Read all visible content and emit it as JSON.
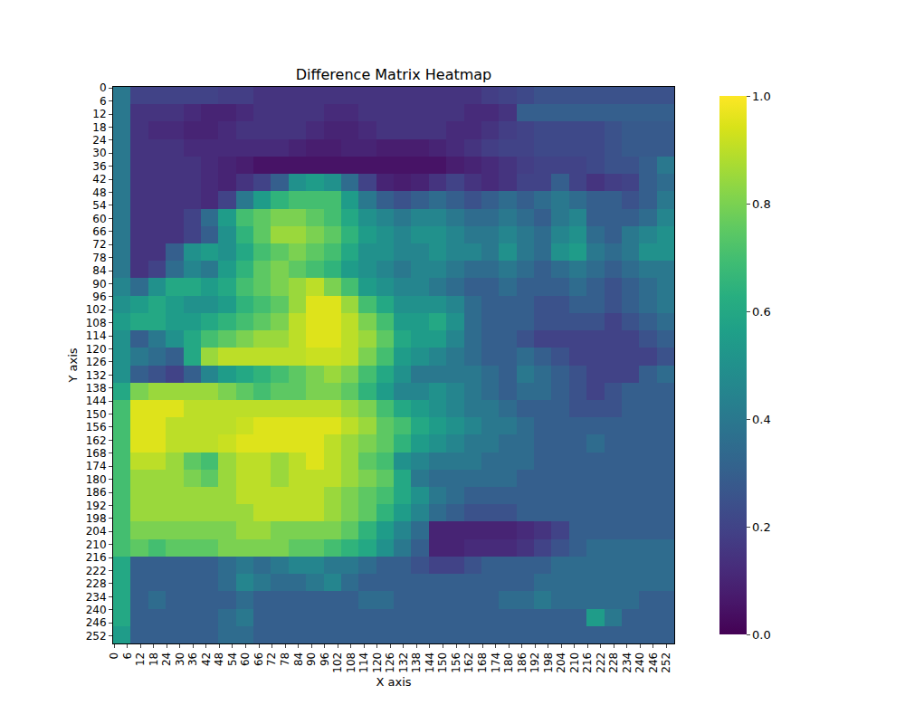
{
  "chart_data": {
    "type": "heatmap",
    "title": "Difference Matrix Heatmap",
    "x_label": "X axis",
    "y_label": "Y axis",
    "color": "Viridis",
    "x": [
      3.5,
      11.5,
      19.5,
      27.5,
      35.5,
      43.5,
      51.5,
      59.5,
      67.5,
      75.5,
      83.5,
      91.5,
      99.5,
      107.5,
      115.5,
      123.5,
      131.5,
      139.5,
      147.5,
      155.5,
      163.5,
      171.5,
      179.5,
      187.5,
      195.5,
      203.5,
      211.5,
      219.5,
      227.5,
      235.5,
      243.5,
      251.5
    ],
    "y": [
      3.5,
      11.5,
      19.5,
      27.5,
      35.5,
      43.5,
      51.5,
      59.5,
      67.5,
      75.5,
      83.5,
      91.5,
      99.5,
      107.5,
      115.5,
      123.5,
      131.5,
      139.5,
      147.5,
      155.5,
      163.5,
      171.5,
      179.5,
      187.5,
      195.5,
      203.5,
      211.5,
      219.5,
      227.5,
      235.5,
      243.5,
      251.5
    ],
    "xlim": [
      -0.5,
      255.5
    ],
    "ylim": [
      255.5,
      -0.5
    ],
    "xticks": [
      0,
      6,
      12,
      18,
      24,
      30,
      36,
      42,
      48,
      54,
      60,
      66,
      72,
      78,
      84,
      90,
      96,
      102,
      108,
      114,
      120,
      126,
      132,
      138,
      144,
      150,
      156,
      162,
      168,
      174,
      180,
      186,
      192,
      198,
      204,
      210,
      216,
      222,
      228,
      234,
      240,
      246,
      252
    ],
    "yticks": [
      0,
      6,
      12,
      18,
      24,
      30,
      36,
      42,
      48,
      54,
      60,
      66,
      72,
      78,
      84,
      90,
      96,
      102,
      108,
      114,
      120,
      126,
      132,
      138,
      144,
      150,
      156,
      162,
      168,
      174,
      180,
      186,
      192,
      198,
      204,
      210,
      216,
      222,
      228,
      234,
      240,
      246,
      252
    ],
    "colorbar": {
      "range": [
        0,
        1
      ],
      "ticks": [
        {
          "value": 0,
          "label": "0.0"
        },
        {
          "value": 0.2,
          "label": "0.2"
        },
        {
          "value": 0.4,
          "label": "0.4"
        },
        {
          "value": 0.6,
          "label": "0.6"
        },
        {
          "value": 0.8,
          "label": "0.8"
        },
        {
          "value": 1,
          "label": "1.0"
        }
      ]
    },
    "z": [
      [
        0.4,
        0.2,
        0.2,
        0.2,
        0.2,
        0.2,
        0.18,
        0.18,
        0.15,
        0.15,
        0.15,
        0.15,
        0.15,
        0.15,
        0.15,
        0.15,
        0.15,
        0.15,
        0.15,
        0.15,
        0.15,
        0.18,
        0.2,
        0.22,
        0.25,
        0.25,
        0.25,
        0.25,
        0.25,
        0.25,
        0.25,
        0.25
      ],
      [
        0.4,
        0.15,
        0.15,
        0.15,
        0.12,
        0.1,
        0.1,
        0.12,
        0.15,
        0.15,
        0.15,
        0.15,
        0.12,
        0.12,
        0.15,
        0.15,
        0.15,
        0.15,
        0.15,
        0.15,
        0.12,
        0.12,
        0.15,
        0.3,
        0.3,
        0.3,
        0.3,
        0.3,
        0.3,
        0.3,
        0.3,
        0.3
      ],
      [
        0.4,
        0.15,
        0.12,
        0.12,
        0.1,
        0.1,
        0.12,
        0.15,
        0.15,
        0.15,
        0.15,
        0.12,
        0.1,
        0.1,
        0.12,
        0.15,
        0.15,
        0.15,
        0.15,
        0.12,
        0.12,
        0.15,
        0.18,
        0.2,
        0.22,
        0.22,
        0.22,
        0.22,
        0.25,
        0.28,
        0.28,
        0.28
      ],
      [
        0.4,
        0.15,
        0.15,
        0.15,
        0.12,
        0.12,
        0.12,
        0.12,
        0.12,
        0.12,
        0.1,
        0.08,
        0.08,
        0.1,
        0.1,
        0.08,
        0.08,
        0.08,
        0.1,
        0.12,
        0.15,
        0.18,
        0.2,
        0.2,
        0.22,
        0.22,
        0.22,
        0.22,
        0.25,
        0.28,
        0.28,
        0.28
      ],
      [
        0.4,
        0.15,
        0.15,
        0.15,
        0.15,
        0.12,
        0.1,
        0.08,
        0.05,
        0.05,
        0.05,
        0.05,
        0.05,
        0.05,
        0.05,
        0.05,
        0.05,
        0.05,
        0.05,
        0.08,
        0.1,
        0.12,
        0.15,
        0.18,
        0.2,
        0.2,
        0.2,
        0.22,
        0.25,
        0.25,
        0.3,
        0.4
      ],
      [
        0.4,
        0.15,
        0.15,
        0.15,
        0.15,
        0.12,
        0.1,
        0.15,
        0.2,
        0.3,
        0.5,
        0.55,
        0.5,
        0.35,
        0.2,
        0.1,
        0.08,
        0.1,
        0.15,
        0.2,
        0.15,
        0.12,
        0.15,
        0.2,
        0.2,
        0.3,
        0.2,
        0.15,
        0.18,
        0.2,
        0.3,
        0.35
      ],
      [
        0.4,
        0.15,
        0.15,
        0.15,
        0.15,
        0.12,
        0.2,
        0.4,
        0.55,
        0.65,
        0.7,
        0.7,
        0.7,
        0.55,
        0.4,
        0.3,
        0.25,
        0.3,
        0.35,
        0.3,
        0.25,
        0.3,
        0.35,
        0.3,
        0.35,
        0.4,
        0.35,
        0.3,
        0.3,
        0.25,
        0.3,
        0.4
      ],
      [
        0.4,
        0.15,
        0.15,
        0.15,
        0.2,
        0.35,
        0.55,
        0.7,
        0.75,
        0.8,
        0.8,
        0.75,
        0.7,
        0.6,
        0.5,
        0.45,
        0.4,
        0.45,
        0.45,
        0.4,
        0.35,
        0.35,
        0.4,
        0.35,
        0.3,
        0.4,
        0.45,
        0.3,
        0.3,
        0.3,
        0.35,
        0.45
      ],
      [
        0.4,
        0.15,
        0.15,
        0.15,
        0.2,
        0.3,
        0.5,
        0.65,
        0.75,
        0.85,
        0.85,
        0.8,
        0.75,
        0.65,
        0.55,
        0.5,
        0.45,
        0.5,
        0.5,
        0.45,
        0.4,
        0.4,
        0.45,
        0.4,
        0.35,
        0.45,
        0.5,
        0.35,
        0.3,
        0.4,
        0.45,
        0.5
      ],
      [
        0.4,
        0.15,
        0.15,
        0.3,
        0.5,
        0.55,
        0.5,
        0.6,
        0.7,
        0.75,
        0.8,
        0.75,
        0.7,
        0.6,
        0.5,
        0.5,
        0.45,
        0.45,
        0.5,
        0.45,
        0.45,
        0.4,
        0.5,
        0.4,
        0.35,
        0.5,
        0.55,
        0.4,
        0.35,
        0.4,
        0.5,
        0.5
      ],
      [
        0.4,
        0.15,
        0.2,
        0.35,
        0.45,
        0.4,
        0.55,
        0.65,
        0.75,
        0.8,
        0.75,
        0.7,
        0.65,
        0.55,
        0.5,
        0.45,
        0.4,
        0.45,
        0.45,
        0.4,
        0.35,
        0.35,
        0.4,
        0.35,
        0.3,
        0.35,
        0.4,
        0.35,
        0.3,
        0.35,
        0.4,
        0.4
      ],
      [
        0.45,
        0.35,
        0.5,
        0.6,
        0.6,
        0.55,
        0.6,
        0.7,
        0.75,
        0.8,
        0.85,
        0.9,
        0.8,
        0.7,
        0.55,
        0.5,
        0.45,
        0.45,
        0.4,
        0.35,
        0.3,
        0.3,
        0.35,
        0.3,
        0.3,
        0.3,
        0.35,
        0.3,
        0.25,
        0.3,
        0.35,
        0.4
      ],
      [
        0.5,
        0.55,
        0.6,
        0.55,
        0.5,
        0.5,
        0.55,
        0.65,
        0.7,
        0.75,
        0.85,
        0.95,
        0.95,
        0.85,
        0.7,
        0.6,
        0.5,
        0.5,
        0.5,
        0.45,
        0.35,
        0.3,
        0.3,
        0.3,
        0.25,
        0.25,
        0.3,
        0.3,
        0.25,
        0.3,
        0.35,
        0.4
      ],
      [
        0.55,
        0.6,
        0.6,
        0.55,
        0.55,
        0.6,
        0.65,
        0.7,
        0.75,
        0.8,
        0.9,
        0.95,
        0.95,
        0.9,
        0.8,
        0.7,
        0.55,
        0.55,
        0.6,
        0.5,
        0.35,
        0.3,
        0.3,
        0.3,
        0.25,
        0.25,
        0.25,
        0.25,
        0.2,
        0.25,
        0.3,
        0.35
      ],
      [
        0.5,
        0.3,
        0.4,
        0.5,
        0.6,
        0.7,
        0.75,
        0.8,
        0.85,
        0.85,
        0.9,
        0.95,
        0.95,
        0.9,
        0.85,
        0.75,
        0.6,
        0.55,
        0.55,
        0.45,
        0.35,
        0.3,
        0.3,
        0.25,
        0.2,
        0.2,
        0.2,
        0.2,
        0.2,
        0.2,
        0.25,
        0.3
      ],
      [
        0.5,
        0.4,
        0.35,
        0.3,
        0.6,
        0.85,
        0.9,
        0.9,
        0.9,
        0.9,
        0.9,
        0.92,
        0.92,
        0.9,
        0.8,
        0.7,
        0.55,
        0.5,
        0.45,
        0.4,
        0.35,
        0.3,
        0.3,
        0.35,
        0.3,
        0.25,
        0.2,
        0.2,
        0.2,
        0.2,
        0.2,
        0.25
      ],
      [
        0.5,
        0.3,
        0.25,
        0.2,
        0.3,
        0.45,
        0.55,
        0.6,
        0.65,
        0.7,
        0.75,
        0.8,
        0.85,
        0.8,
        0.7,
        0.6,
        0.5,
        0.4,
        0.4,
        0.4,
        0.4,
        0.35,
        0.3,
        0.4,
        0.35,
        0.3,
        0.25,
        0.2,
        0.2,
        0.2,
        0.3,
        0.35
      ],
      [
        0.6,
        0.8,
        0.85,
        0.85,
        0.85,
        0.85,
        0.8,
        0.75,
        0.7,
        0.75,
        0.75,
        0.8,
        0.8,
        0.75,
        0.65,
        0.55,
        0.45,
        0.45,
        0.5,
        0.45,
        0.4,
        0.35,
        0.3,
        0.35,
        0.35,
        0.3,
        0.25,
        0.2,
        0.25,
        0.3,
        0.3,
        0.3
      ],
      [
        0.7,
        0.95,
        0.95,
        0.95,
        0.9,
        0.9,
        0.9,
        0.9,
        0.9,
        0.9,
        0.9,
        0.9,
        0.9,
        0.85,
        0.8,
        0.7,
        0.6,
        0.55,
        0.5,
        0.45,
        0.4,
        0.4,
        0.35,
        0.3,
        0.3,
        0.3,
        0.25,
        0.25,
        0.25,
        0.3,
        0.3,
        0.3
      ],
      [
        0.7,
        0.95,
        0.95,
        0.9,
        0.9,
        0.9,
        0.9,
        0.92,
        0.95,
        0.95,
        0.95,
        0.95,
        0.95,
        0.9,
        0.85,
        0.75,
        0.7,
        0.6,
        0.55,
        0.5,
        0.45,
        0.4,
        0.4,
        0.35,
        0.3,
        0.3,
        0.3,
        0.3,
        0.3,
        0.3,
        0.3,
        0.3
      ],
      [
        0.7,
        0.95,
        0.95,
        0.9,
        0.9,
        0.9,
        0.92,
        0.95,
        0.95,
        0.95,
        0.95,
        0.95,
        0.9,
        0.85,
        0.8,
        0.75,
        0.65,
        0.55,
        0.5,
        0.45,
        0.4,
        0.4,
        0.35,
        0.35,
        0.3,
        0.3,
        0.3,
        0.35,
        0.3,
        0.3,
        0.3,
        0.3
      ],
      [
        0.7,
        0.9,
        0.9,
        0.85,
        0.75,
        0.7,
        0.85,
        0.9,
        0.9,
        0.85,
        0.9,
        0.95,
        0.9,
        0.85,
        0.75,
        0.7,
        0.5,
        0.45,
        0.4,
        0.4,
        0.4,
        0.35,
        0.35,
        0.35,
        0.3,
        0.3,
        0.3,
        0.3,
        0.3,
        0.3,
        0.3,
        0.3
      ],
      [
        0.7,
        0.85,
        0.85,
        0.85,
        0.8,
        0.75,
        0.85,
        0.9,
        0.9,
        0.85,
        0.9,
        0.9,
        0.9,
        0.85,
        0.8,
        0.75,
        0.6,
        0.4,
        0.35,
        0.35,
        0.35,
        0.35,
        0.35,
        0.3,
        0.3,
        0.3,
        0.3,
        0.3,
        0.3,
        0.3,
        0.3,
        0.3
      ],
      [
        0.7,
        0.85,
        0.85,
        0.85,
        0.85,
        0.85,
        0.85,
        0.9,
        0.9,
        0.9,
        0.9,
        0.9,
        0.85,
        0.8,
        0.75,
        0.7,
        0.6,
        0.5,
        0.4,
        0.35,
        0.3,
        0.3,
        0.3,
        0.3,
        0.3,
        0.3,
        0.3,
        0.3,
        0.3,
        0.3,
        0.3,
        0.3
      ],
      [
        0.7,
        0.85,
        0.85,
        0.85,
        0.85,
        0.85,
        0.85,
        0.85,
        0.9,
        0.9,
        0.9,
        0.9,
        0.85,
        0.8,
        0.75,
        0.65,
        0.55,
        0.45,
        0.35,
        0.3,
        0.25,
        0.25,
        0.25,
        0.3,
        0.3,
        0.3,
        0.3,
        0.3,
        0.3,
        0.3,
        0.3,
        0.3
      ],
      [
        0.7,
        0.8,
        0.8,
        0.8,
        0.8,
        0.8,
        0.8,
        0.85,
        0.85,
        0.8,
        0.8,
        0.8,
        0.8,
        0.75,
        0.65,
        0.55,
        0.45,
        0.35,
        0.1,
        0.1,
        0.1,
        0.1,
        0.1,
        0.12,
        0.15,
        0.2,
        0.3,
        0.3,
        0.3,
        0.3,
        0.3,
        0.3
      ],
      [
        0.7,
        0.75,
        0.7,
        0.75,
        0.75,
        0.75,
        0.8,
        0.8,
        0.8,
        0.8,
        0.75,
        0.75,
        0.7,
        0.65,
        0.6,
        0.5,
        0.4,
        0.3,
        0.1,
        0.1,
        0.12,
        0.12,
        0.12,
        0.15,
        0.2,
        0.25,
        0.3,
        0.35,
        0.35,
        0.35,
        0.35,
        0.35
      ],
      [
        0.6,
        0.3,
        0.3,
        0.3,
        0.3,
        0.3,
        0.35,
        0.4,
        0.35,
        0.4,
        0.45,
        0.45,
        0.4,
        0.4,
        0.35,
        0.3,
        0.3,
        0.25,
        0.2,
        0.2,
        0.25,
        0.3,
        0.3,
        0.3,
        0.3,
        0.35,
        0.35,
        0.35,
        0.35,
        0.35,
        0.35,
        0.35
      ],
      [
        0.6,
        0.3,
        0.3,
        0.3,
        0.3,
        0.3,
        0.35,
        0.45,
        0.4,
        0.35,
        0.35,
        0.4,
        0.45,
        0.35,
        0.3,
        0.3,
        0.3,
        0.3,
        0.3,
        0.3,
        0.3,
        0.3,
        0.3,
        0.3,
        0.35,
        0.35,
        0.35,
        0.35,
        0.35,
        0.35,
        0.35,
        0.35
      ],
      [
        0.6,
        0.3,
        0.35,
        0.3,
        0.3,
        0.3,
        0.3,
        0.35,
        0.3,
        0.3,
        0.3,
        0.3,
        0.3,
        0.3,
        0.35,
        0.35,
        0.3,
        0.3,
        0.3,
        0.3,
        0.3,
        0.3,
        0.35,
        0.35,
        0.4,
        0.35,
        0.35,
        0.35,
        0.35,
        0.35,
        0.3,
        0.3
      ],
      [
        0.6,
        0.3,
        0.3,
        0.3,
        0.3,
        0.3,
        0.35,
        0.4,
        0.3,
        0.3,
        0.3,
        0.3,
        0.3,
        0.3,
        0.3,
        0.3,
        0.3,
        0.3,
        0.3,
        0.3,
        0.3,
        0.3,
        0.3,
        0.3,
        0.3,
        0.3,
        0.3,
        0.55,
        0.4,
        0.3,
        0.3,
        0.3
      ],
      [
        0.55,
        0.3,
        0.3,
        0.3,
        0.3,
        0.3,
        0.35,
        0.35,
        0.3,
        0.3,
        0.3,
        0.3,
        0.3,
        0.3,
        0.3,
        0.3,
        0.3,
        0.3,
        0.3,
        0.3,
        0.3,
        0.3,
        0.3,
        0.3,
        0.3,
        0.3,
        0.3,
        0.3,
        0.3,
        0.3,
        0.3,
        0.3
      ]
    ]
  }
}
